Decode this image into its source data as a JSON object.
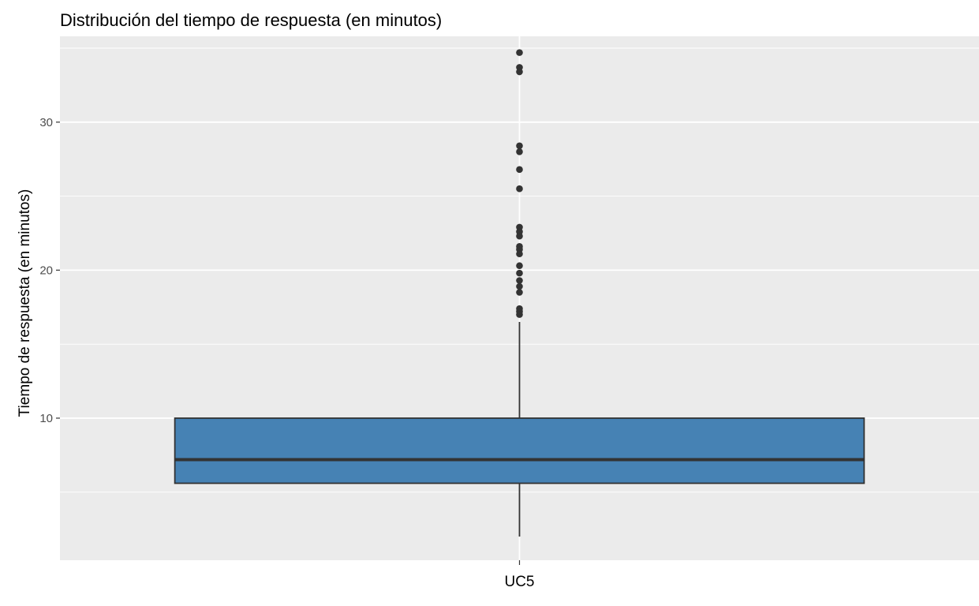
{
  "chart_data": {
    "type": "box",
    "title": "Distribución del tiempo de respuesta (en minutos)",
    "xlabel": "",
    "ylabel": "Tiempo de respuesta (en minutos)",
    "categories": [
      "UC5"
    ],
    "yticks": [
      10,
      20,
      30
    ],
    "ylim": [
      0.4,
      35.8
    ],
    "grid": true,
    "colors": {
      "panel": "#ebebeb",
      "box_fill": "#4682b4",
      "box_stroke": "#333333",
      "outlier": "#333333",
      "gridline": "#ffffff"
    },
    "box": {
      "category": "UC5",
      "whisker_low": 2.0,
      "q1": 5.6,
      "median": 7.2,
      "q3": 10.0,
      "whisker_high": 16.5,
      "outliers": [
        34.7,
        33.7,
        33.4,
        28.4,
        28.0,
        26.8,
        25.5,
        22.9,
        22.6,
        22.3,
        21.6,
        21.4,
        21.1,
        20.3,
        19.8,
        19.3,
        18.9,
        18.5,
        17.4,
        17.2,
        17.0
      ]
    }
  }
}
